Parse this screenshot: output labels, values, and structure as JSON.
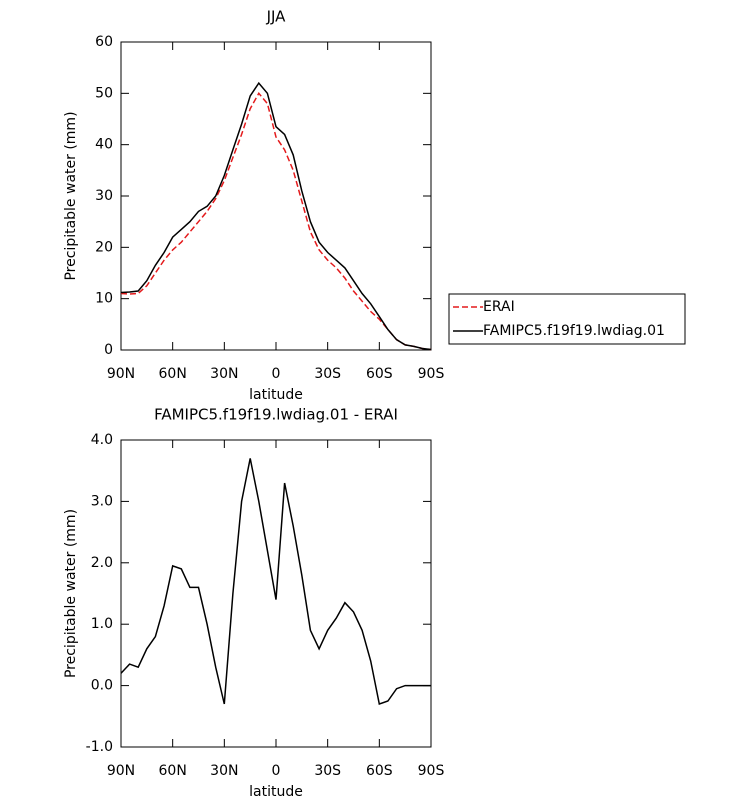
{
  "chart_data": [
    {
      "type": "line",
      "title": "JJA",
      "x_label": "latitude",
      "y_label": "Precipitable water (mm)",
      "x": [
        90,
        85,
        80,
        75,
        70,
        65,
        60,
        55,
        50,
        45,
        40,
        35,
        30,
        25,
        20,
        15,
        10,
        5,
        0,
        -5,
        -10,
        -15,
        -20,
        -25,
        -30,
        -35,
        -40,
        -45,
        -50,
        -55,
        -60,
        -65,
        -70,
        -75,
        -80,
        -85,
        -90
      ],
      "series": [
        {
          "name": "ERAI",
          "color": "#e41a1c",
          "style": "dashed",
          "values": [
            11.0,
            10.9,
            11.0,
            12.5,
            15.0,
            17.5,
            19.5,
            21.0,
            23.0,
            25.0,
            27.0,
            29.5,
            33.0,
            37.5,
            42.0,
            47.0,
            50.0,
            48.0,
            41.5,
            39.0,
            35.0,
            29.0,
            23.0,
            19.5,
            17.5,
            16.0,
            14.0,
            11.5,
            9.5,
            7.5,
            6.0,
            4.0,
            2.0,
            1.0,
            0.7,
            0.3,
            0.1
          ]
        },
        {
          "name": "FAMIPC5.f19f19.lwdiag.01",
          "color": "#000000",
          "style": "solid",
          "values": [
            11.2,
            11.3,
            11.5,
            13.5,
            16.5,
            19.0,
            22.0,
            23.5,
            25.0,
            27.0,
            28.0,
            30.0,
            34.0,
            39.0,
            44.0,
            49.5,
            52.0,
            50.0,
            43.5,
            42.0,
            38.0,
            31.0,
            25.0,
            21.0,
            19.0,
            17.5,
            16.0,
            13.5,
            11.0,
            9.0,
            6.5,
            4.0,
            2.0,
            1.0,
            0.7,
            0.3,
            0.1
          ]
        }
      ],
      "xlim": [
        90,
        -90
      ],
      "xticks": [
        {
          "value": 90,
          "label": "90N"
        },
        {
          "value": 60,
          "label": "60N"
        },
        {
          "value": 30,
          "label": "30N"
        },
        0,
        {
          "value": -30,
          "label": "30S"
        },
        {
          "value": -60,
          "label": "60S"
        },
        {
          "value": -90,
          "label": "90S"
        }
      ],
      "ylim": [
        0,
        60
      ],
      "yticks": [
        0,
        10,
        20,
        30,
        40,
        50,
        60
      ],
      "legend": "right"
    },
    {
      "type": "line",
      "title": "FAMIPC5.f19f19.lwdiag.01 - ERAI",
      "x_label": "latitude",
      "y_label": "Precipitable water (mm)",
      "x": [
        90,
        85,
        80,
        75,
        70,
        65,
        60,
        55,
        50,
        45,
        40,
        35,
        30,
        25,
        20,
        15,
        10,
        5,
        0,
        -5,
        -10,
        -15,
        -20,
        -25,
        -30,
        -35,
        -40,
        -45,
        -50,
        -55,
        -60,
        -65,
        -70,
        -75,
        -80,
        -85,
        -90
      ],
      "series": [
        {
          "color": "#000000",
          "style": "solid",
          "values": [
            0.2,
            0.35,
            0.3,
            0.6,
            0.8,
            1.3,
            1.95,
            1.9,
            1.6,
            1.6,
            1.0,
            0.3,
            -0.3,
            1.5,
            3.0,
            3.7,
            3.0,
            2.2,
            1.4,
            3.3,
            2.6,
            1.8,
            0.9,
            0.6,
            0.9,
            1.1,
            1.35,
            1.2,
            0.9,
            0.4,
            -0.3,
            -0.25,
            -0.05,
            0.0,
            0.0,
            0.0,
            0.0
          ]
        }
      ],
      "xlim": [
        90,
        -90
      ],
      "xticks": [
        {
          "value": 90,
          "label": "90N"
        },
        {
          "value": 60,
          "label": "60N"
        },
        {
          "value": 30,
          "label": "30N"
        },
        0,
        {
          "value": -30,
          "label": "30S"
        },
        {
          "value": -60,
          "label": "60S"
        },
        {
          "value": -90,
          "label": "90S"
        }
      ],
      "ylim": [
        -1,
        4
      ],
      "yticks": [
        {
          "value": -1,
          "label": "-1.0"
        },
        {
          "value": 0,
          "label": "0.0"
        },
        {
          "value": 1,
          "label": "1.0"
        },
        {
          "value": 2,
          "label": "2.0"
        },
        {
          "value": 3,
          "label": "3.0"
        },
        {
          "value": 4,
          "label": "4.0"
        }
      ]
    }
  ]
}
